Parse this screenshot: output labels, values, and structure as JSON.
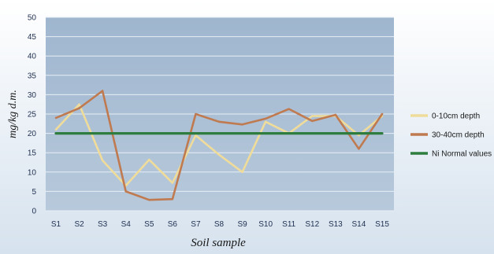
{
  "chart_data": {
    "type": "line",
    "title": "",
    "xlabel": "Soil sample",
    "ylabel": "mg/kg d.m.",
    "categories": [
      "S1",
      "S2",
      "S3",
      "S4",
      "S5",
      "S6",
      "S7",
      "S8",
      "S9",
      "S10",
      "S11",
      "S12",
      "S13",
      "S14",
      "S15"
    ],
    "ylim": [
      0,
      50
    ],
    "yticks": [
      0,
      5,
      10,
      15,
      20,
      25,
      30,
      35,
      40,
      45,
      50
    ],
    "grid": true,
    "legend_position": "right",
    "series": [
      {
        "name": "0-10cm depth",
        "color": "#f0dc9a",
        "values": [
          21,
          27.5,
          13,
          6.5,
          13.2,
          7.2,
          19.5,
          14.5,
          10,
          23,
          20,
          24.5,
          24.5,
          19.5,
          24.5
        ]
      },
      {
        "name": "30-40cm depth",
        "color": "#c07a50",
        "values": [
          24,
          26.5,
          31,
          5,
          2.8,
          3,
          25,
          23,
          22.3,
          23.8,
          26.3,
          23.2,
          24.8,
          16,
          25
        ]
      },
      {
        "name": "Ni Normal values",
        "color": "#2e7d3f",
        "values": [
          20,
          20,
          20,
          20,
          20,
          20,
          20,
          20,
          20,
          20,
          20,
          20,
          20,
          20,
          20
        ]
      }
    ]
  }
}
